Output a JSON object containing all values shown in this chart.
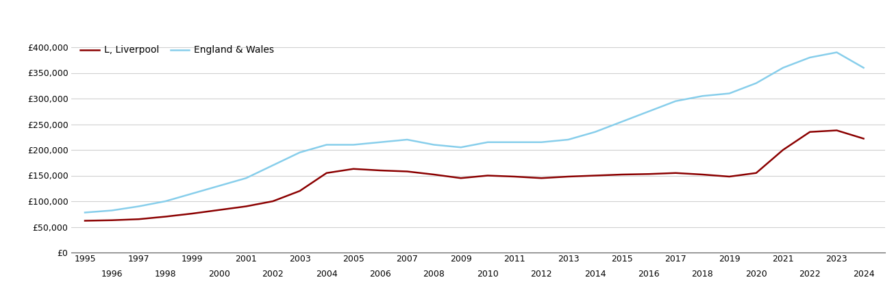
{
  "liverpool": {
    "years": [
      1995,
      1996,
      1997,
      1998,
      1999,
      2000,
      2001,
      2002,
      2003,
      2004,
      2005,
      2006,
      2007,
      2008,
      2009,
      2010,
      2011,
      2012,
      2013,
      2014,
      2015,
      2016,
      2017,
      2018,
      2019,
      2020,
      2021,
      2022,
      2023,
      2024
    ],
    "values": [
      62000,
      63000,
      65000,
      70000,
      76000,
      83000,
      90000,
      100000,
      120000,
      155000,
      163000,
      160000,
      158000,
      152000,
      145000,
      150000,
      148000,
      145000,
      148000,
      150000,
      152000,
      153000,
      155000,
      152000,
      148000,
      155000,
      200000,
      235000,
      238000,
      222000
    ]
  },
  "england_wales": {
    "years": [
      1995,
      1996,
      1997,
      1998,
      1999,
      2000,
      2001,
      2002,
      2003,
      2004,
      2005,
      2006,
      2007,
      2008,
      2009,
      2010,
      2011,
      2012,
      2013,
      2014,
      2015,
      2016,
      2017,
      2018,
      2019,
      2020,
      2021,
      2022,
      2023,
      2024
    ],
    "values": [
      78000,
      82000,
      90000,
      100000,
      115000,
      130000,
      145000,
      170000,
      195000,
      210000,
      210000,
      215000,
      220000,
      210000,
      205000,
      215000,
      215000,
      215000,
      220000,
      235000,
      255000,
      275000,
      295000,
      305000,
      310000,
      330000,
      360000,
      380000,
      390000,
      360000
    ]
  },
  "liverpool_color": "#8B0000",
  "england_wales_color": "#87CEEB",
  "liverpool_label": "L, Liverpool",
  "england_wales_label": "England & Wales",
  "ylim": [
    0,
    420000
  ],
  "yticks": [
    0,
    50000,
    100000,
    150000,
    200000,
    250000,
    300000,
    350000,
    400000
  ],
  "xlim_start": 1994.5,
  "xlim_end": 2024.8,
  "background_color": "#ffffff",
  "grid_color": "#d0d0d0",
  "line_width": 1.8,
  "tick_fontsize": 9,
  "legend_fontsize": 10
}
